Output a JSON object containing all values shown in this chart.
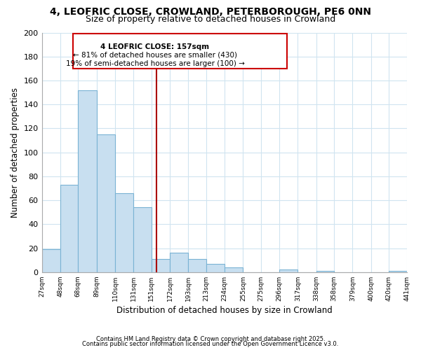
{
  "title1": "4, LEOFRIC CLOSE, CROWLAND, PETERBOROUGH, PE6 0NN",
  "title2": "Size of property relative to detached houses in Crowland",
  "xlabel": "Distribution of detached houses by size in Crowland",
  "ylabel": "Number of detached properties",
  "bar_color": "#c8dff0",
  "bar_edge_color": "#7ab3d4",
  "bins": [
    27,
    48,
    68,
    89,
    110,
    131,
    151,
    172,
    193,
    213,
    234,
    255,
    275,
    296,
    317,
    338,
    358,
    379,
    400,
    420,
    441
  ],
  "counts": [
    19,
    73,
    152,
    115,
    66,
    54,
    11,
    16,
    11,
    7,
    4,
    0,
    0,
    2,
    0,
    1,
    0,
    0,
    0,
    1
  ],
  "tick_labels": [
    "27sqm",
    "48sqm",
    "68sqm",
    "89sqm",
    "110sqm",
    "131sqm",
    "151sqm",
    "172sqm",
    "193sqm",
    "213sqm",
    "234sqm",
    "255sqm",
    "275sqm",
    "296sqm",
    "317sqm",
    "338sqm",
    "358sqm",
    "379sqm",
    "400sqm",
    "420sqm",
    "441sqm"
  ],
  "ylim": [
    0,
    200
  ],
  "yticks": [
    0,
    20,
    40,
    60,
    80,
    100,
    120,
    140,
    160,
    180,
    200
  ],
  "vline_x": 157,
  "vline_color": "#aa0000",
  "annotation_box_title": "4 LEOFRIC CLOSE: 157sqm",
  "annotation_line1": "← 81% of detached houses are smaller (430)",
  "annotation_line2": "19% of semi-detached houses are larger (100) →",
  "annotation_box_color": "#ffffff",
  "annotation_box_edge": "#cc0000",
  "footnote1": "Contains HM Land Registry data © Crown copyright and database right 2025.",
  "footnote2": "Contains public sector information licensed under the Open Government Licence v3.0.",
  "background_color": "#ffffff",
  "grid_color": "#d0e4f0"
}
